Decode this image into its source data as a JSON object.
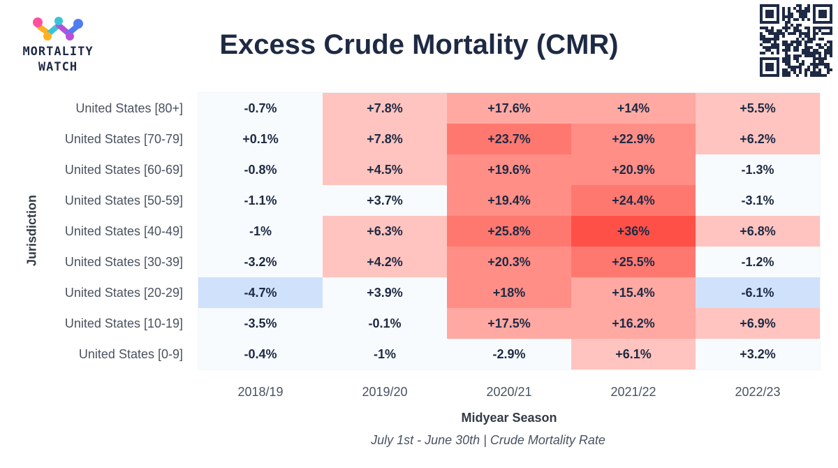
{
  "logo": {
    "line1": "MORTALITY",
    "line2": "WATCH"
  },
  "chart_data": {
    "type": "heatmap",
    "title": "Excess Crude Mortality (CMR)",
    "subtitle": "July 1st - June 30th | Crude Mortality Rate",
    "xlabel": "Midyear Season",
    "ylabel": "Jurisdiction",
    "x_categories": [
      "2018/19",
      "2019/20",
      "2020/21",
      "2021/22",
      "2022/23"
    ],
    "y_categories": [
      "United States [80+]",
      "United States [70-79]",
      "United States [60-69]",
      "United States [50-59]",
      "United States [40-49]",
      "United States [30-39]",
      "United States [20-29]",
      "United States [10-19]",
      "United States [0-9]"
    ],
    "values": [
      [
        -0.7,
        7.8,
        17.6,
        14,
        5.5
      ],
      [
        0.1,
        7.8,
        23.7,
        22.9,
        6.2
      ],
      [
        -0.8,
        4.5,
        19.6,
        20.9,
        -1.3
      ],
      [
        -1.1,
        3.7,
        19.4,
        24.4,
        -3.1
      ],
      [
        -1,
        6.3,
        25.8,
        36,
        6.8
      ],
      [
        -3.2,
        4.2,
        20.3,
        25.5,
        -1.2
      ],
      [
        -4.7,
        3.9,
        18,
        15.4,
        -6.1
      ],
      [
        -3.5,
        -0.1,
        17.5,
        16.2,
        6.9
      ],
      [
        -0.4,
        -1,
        -2.9,
        6.1,
        3.2
      ]
    ],
    "labels": [
      [
        "-0.7%",
        "+7.8%",
        "+17.6%",
        "+14%",
        "+5.5%"
      ],
      [
        "+0.1%",
        "+7.8%",
        "+23.7%",
        "+22.9%",
        "+6.2%"
      ],
      [
        "-0.8%",
        "+4.5%",
        "+19.6%",
        "+20.9%",
        "-1.3%"
      ],
      [
        "-1.1%",
        "+3.7%",
        "+19.4%",
        "+24.4%",
        "-3.1%"
      ],
      [
        "-1%",
        "+6.3%",
        "+25.8%",
        "+36%",
        "+6.8%"
      ],
      [
        "-3.2%",
        "+4.2%",
        "+20.3%",
        "+25.5%",
        "-1.2%"
      ],
      [
        "-4.7%",
        "+3.9%",
        "+18%",
        "+15.4%",
        "-6.1%"
      ],
      [
        "-3.5%",
        "-0.1%",
        "+17.5%",
        "+16.2%",
        "+6.9%"
      ],
      [
        "-0.4%",
        "-1%",
        "-2.9%",
        "+6.1%",
        "+3.2%"
      ]
    ],
    "colors": {
      "neutral": "#f7fbfd",
      "negative": "#d0e1fb",
      "positive_levels": [
        "#f7fbfd",
        "#ffc4bf",
        "#ffa9a2",
        "#ff8e86",
        "#ff786f",
        "#ff5048"
      ],
      "border": "#e6ebf0",
      "title": "#1e2a44",
      "text": "#333a45"
    }
  }
}
